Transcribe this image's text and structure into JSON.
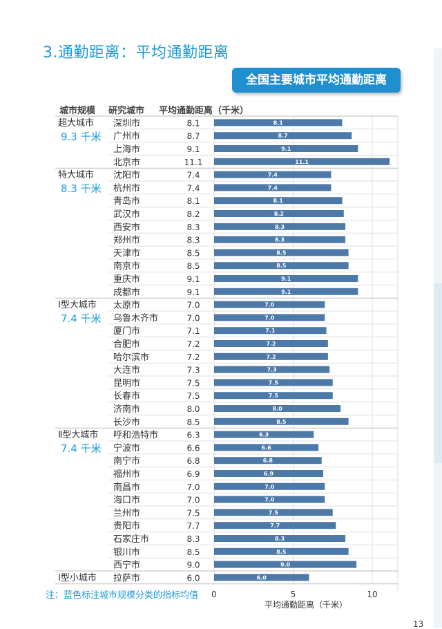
{
  "page": {
    "title": "3.通勤距离：平均通勤距离",
    "banner": "全国主要城市平均通勤距离",
    "note": "注：蓝色标注城市规模分类的指标均值",
    "page_number": "13"
  },
  "headers": {
    "size": "城市规模",
    "city": "研究城市",
    "distance": "平均通勤距离（千米）"
  },
  "colors": {
    "bar": "#4d79a8",
    "accent": "#1e9ad6",
    "grid": "#dddddd"
  },
  "groups": [
    {
      "name": "超大城市",
      "avg": "9.3 千米"
    },
    {
      "name": "特大城市",
      "avg": "8.3 千米"
    },
    {
      "name": "Ⅰ型大城市",
      "avg": "7.4 千米"
    },
    {
      "name": "Ⅱ型大城市",
      "avg": "7.4 千米"
    },
    {
      "name": "Ⅰ型小城市",
      "avg": ""
    }
  ],
  "chart_data": {
    "type": "bar",
    "orientation": "horizontal",
    "xlabel": "平均通勤距离（千米）",
    "xlim": [
      0,
      11.5
    ],
    "xticks": [
      0,
      5,
      10
    ],
    "grid": true,
    "rows": [
      {
        "group": 0,
        "city": "深圳市",
        "value": 8.1
      },
      {
        "group": 0,
        "city": "广州市",
        "value": 8.7
      },
      {
        "group": 0,
        "city": "上海市",
        "value": 9.1
      },
      {
        "group": 0,
        "city": "北京市",
        "value": 11.1
      },
      {
        "group": 1,
        "city": "沈阳市",
        "value": 7.4
      },
      {
        "group": 1,
        "city": "杭州市",
        "value": 7.4
      },
      {
        "group": 1,
        "city": "青岛市",
        "value": 8.1
      },
      {
        "group": 1,
        "city": "武汉市",
        "value": 8.2
      },
      {
        "group": 1,
        "city": "西安市",
        "value": 8.3
      },
      {
        "group": 1,
        "city": "郑州市",
        "value": 8.3
      },
      {
        "group": 1,
        "city": "天津市",
        "value": 8.5
      },
      {
        "group": 1,
        "city": "南京市",
        "value": 8.5
      },
      {
        "group": 1,
        "city": "重庆市",
        "value": 9.1
      },
      {
        "group": 1,
        "city": "成都市",
        "value": 9.1
      },
      {
        "group": 2,
        "city": "太原市",
        "value": 7.0
      },
      {
        "group": 2,
        "city": "乌鲁木齐市",
        "value": 7.0
      },
      {
        "group": 2,
        "city": "厦门市",
        "value": 7.1
      },
      {
        "group": 2,
        "city": "合肥市",
        "value": 7.2
      },
      {
        "group": 2,
        "city": "哈尔滨市",
        "value": 7.2
      },
      {
        "group": 2,
        "city": "大连市",
        "value": 7.3
      },
      {
        "group": 2,
        "city": "昆明市",
        "value": 7.5
      },
      {
        "group": 2,
        "city": "长春市",
        "value": 7.5
      },
      {
        "group": 2,
        "city": "济南市",
        "value": 8.0
      },
      {
        "group": 2,
        "city": "长沙市",
        "value": 8.5
      },
      {
        "group": 3,
        "city": "呼和浩特市",
        "value": 6.3
      },
      {
        "group": 3,
        "city": "宁波市",
        "value": 6.6
      },
      {
        "group": 3,
        "city": "南宁市",
        "value": 6.8
      },
      {
        "group": 3,
        "city": "福州市",
        "value": 6.9
      },
      {
        "group": 3,
        "city": "南昌市",
        "value": 7.0
      },
      {
        "group": 3,
        "city": "海口市",
        "value": 7.0
      },
      {
        "group": 3,
        "city": "兰州市",
        "value": 7.5
      },
      {
        "group": 3,
        "city": "贵阳市",
        "value": 7.7
      },
      {
        "group": 3,
        "city": "石家庄市",
        "value": 8.3
      },
      {
        "group": 3,
        "city": "银川市",
        "value": 8.5
      },
      {
        "group": 3,
        "city": "西宁市",
        "value": 9.0
      },
      {
        "group": 4,
        "city": "拉萨市",
        "value": 6.0
      }
    ]
  }
}
